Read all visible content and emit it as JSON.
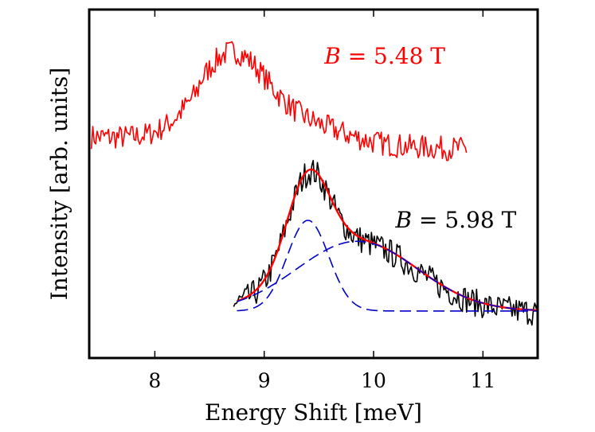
{
  "chart_data": {
    "type": "line",
    "xlabel": "Energy Shift [meV]",
    "ylabel": "Intensity [arb. units]",
    "xlim": [
      7.4,
      11.5
    ],
    "ylim": [
      0,
      1
    ],
    "xticks": [
      "8",
      "9",
      "10",
      "11"
    ],
    "xtick_values": [
      8,
      9,
      10,
      11
    ],
    "yticks": [],
    "grid": false,
    "legend": "none",
    "annotations": [
      {
        "var": "B",
        "text": " = 5.48 T",
        "color": "#ff0000",
        "x": 9.55,
        "y": 0.845
      },
      {
        "var": "B",
        "text": " = 5.98 T",
        "color": "#000000",
        "x": 10.2,
        "y": 0.375
      }
    ],
    "series": [
      {
        "role": "data",
        "color": "#ff0000",
        "x_start": 7.42,
        "x_end": 10.85,
        "peak_centre": 8.7,
        "peak_height": 0.25,
        "baseline": 0.635,
        "baseline_end": 0.6
      },
      {
        "role": "data",
        "color": "#000000",
        "x_start": 8.72,
        "x_end": 11.5,
        "peak_centre": 9.42,
        "peak_height": 0.38,
        "baseline": 0.13
      },
      {
        "role": "fit",
        "color": "#ff0000",
        "components": [
          {
            "centre": 9.4,
            "width": 0.19,
            "height": 0.26
          },
          {
            "centre": 9.85,
            "width": 0.55,
            "height": 0.2
          }
        ],
        "baseline": 0.135
      },
      {
        "role": "component",
        "color": "#0000cc",
        "dash": true,
        "centre": 9.4,
        "width": 0.19,
        "height": 0.26,
        "baseline": 0.135
      },
      {
        "role": "component",
        "color": "#0000cc",
        "dash": true,
        "centre": 9.85,
        "width": 0.55,
        "height": 0.2,
        "baseline": 0.135
      }
    ]
  }
}
